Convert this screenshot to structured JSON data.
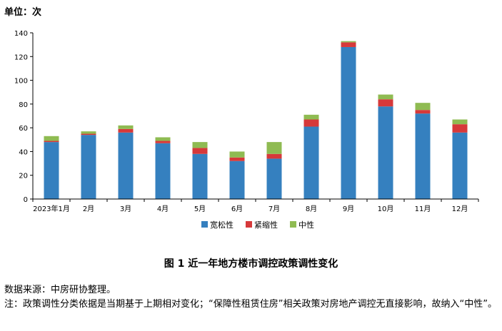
{
  "unit_label": "单位：次",
  "figure_title": "图 1  近一年地方楼市调控政策调性变化",
  "source": "数据来源：中房研协整理。",
  "note": "注：政策调性分类依据是当期基于上期相对变化；“保障性租赁住房”相关政策对房地产调控无直接影响，故纳入“中性”。",
  "chart_data": {
    "type": "bar",
    "stacked": true,
    "categories": [
      "2023年1月",
      "2月",
      "3月",
      "4月",
      "5月",
      "6月",
      "7月",
      "8月",
      "9月",
      "10月",
      "11月",
      "12月"
    ],
    "series": [
      {
        "name": "宽松性",
        "color": "#3580bf",
        "values": [
          48,
          54,
          56,
          47,
          38,
          32,
          34,
          61,
          128,
          78,
          72,
          56
        ]
      },
      {
        "name": "紧缩性",
        "color": "#d6393a",
        "values": [
          1,
          1,
          3,
          2,
          5,
          3,
          4,
          6,
          4,
          6,
          3,
          7
        ]
      },
      {
        "name": "中性",
        "color": "#8fbb52",
        "values": [
          4,
          2,
          3,
          3,
          5,
          5,
          10,
          4,
          1,
          4,
          6,
          4
        ]
      }
    ],
    "ylim": [
      0,
      140
    ],
    "yticks": [
      0,
      20,
      40,
      60,
      80,
      100,
      120,
      140
    ],
    "legend_position": "bottom",
    "grid": false
  }
}
